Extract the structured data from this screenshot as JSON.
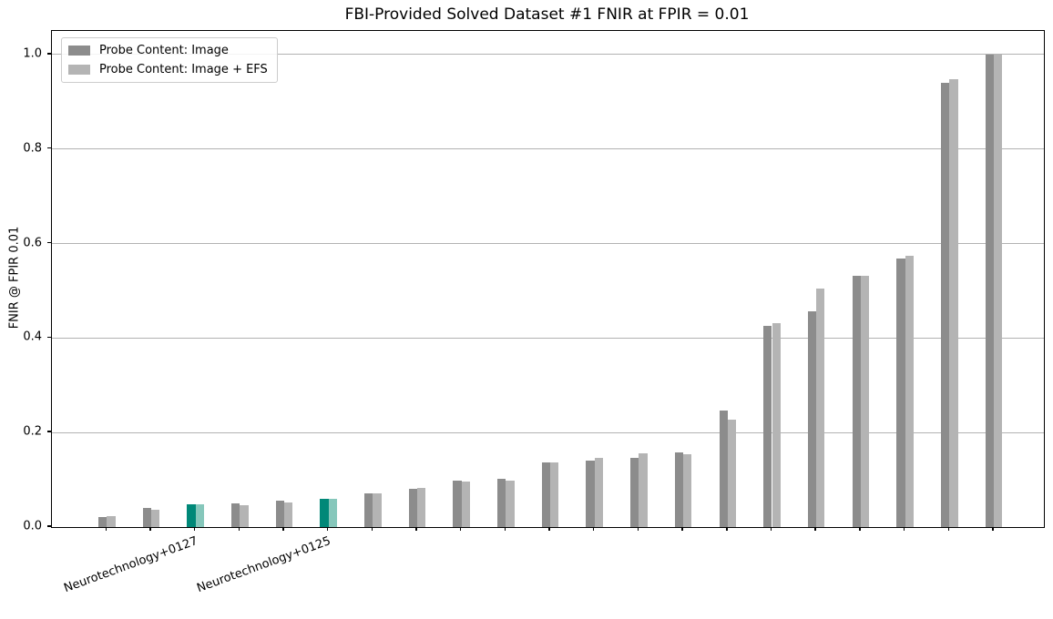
{
  "chart_data": {
    "type": "bar",
    "title": "FBI-Provided Solved Dataset #1 FNIR at FPIR = 0.01",
    "ylabel": "FNIR @ FPIR 0.01",
    "ylim": [
      0,
      1.05
    ],
    "ytick_labels": [
      "0.0",
      "0.2",
      "0.4",
      "0.6",
      "0.8",
      "1.0"
    ],
    "ytick_values": [
      0.0,
      0.2,
      0.4,
      0.6,
      0.8,
      1.0
    ],
    "grid": true,
    "legend_position": "upper left",
    "categories": [
      "",
      "",
      "Neurotechnology+0127",
      "",
      "",
      "Neurotechnology+0125",
      "",
      "",
      "",
      "",
      "",
      "",
      "",
      "",
      "",
      "",
      "",
      "",
      "",
      "",
      ""
    ],
    "highlighted_indices": [
      2,
      5
    ],
    "series": [
      {
        "name": "Probe Content: Image",
        "color": "#8c8c8c",
        "highlight_color": "#008878",
        "values": [
          0.022,
          0.04,
          0.048,
          0.05,
          0.055,
          0.059,
          0.072,
          0.08,
          0.098,
          0.102,
          0.136,
          0.141,
          0.147,
          0.158,
          0.246,
          0.425,
          0.456,
          0.531,
          0.569,
          0.94,
          1.0
        ]
      },
      {
        "name": "Probe Content: Image + EFS",
        "color": "#b4b4b4",
        "highlight_color": "#86c7bb",
        "values": [
          0.023,
          0.036,
          0.048,
          0.046,
          0.053,
          0.059,
          0.072,
          0.083,
          0.097,
          0.098,
          0.136,
          0.146,
          0.157,
          0.154,
          0.228,
          0.431,
          0.504,
          0.531,
          0.574,
          0.948,
          1.0
        ]
      }
    ]
  }
}
